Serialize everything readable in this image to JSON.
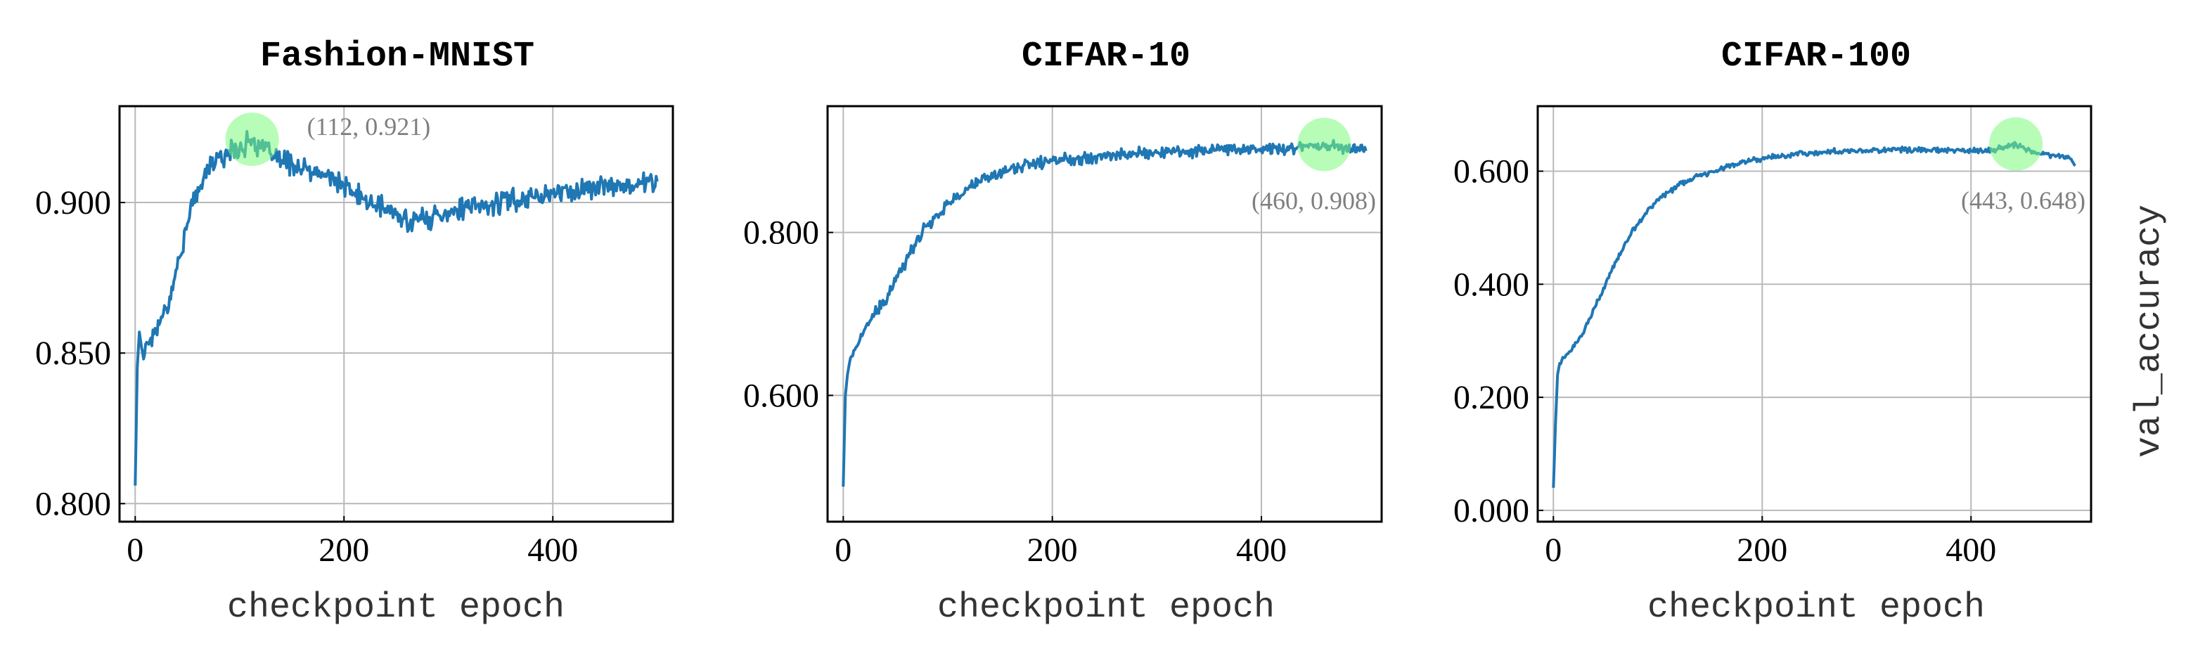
{
  "ylabel": "val_accuracy",
  "colors": {
    "line": "#1f77b4",
    "highlight": "#7CFC7C",
    "annotation": "#7f7f7f"
  },
  "chart_data": [
    {
      "type": "line",
      "title": "Fashion-MNIST",
      "xlabel": "checkpoint epoch",
      "xlim": [
        -15,
        515
      ],
      "ylim": [
        0.794,
        0.932
      ],
      "xticks": [
        0,
        200,
        400
      ],
      "xtick_labels": [
        "0",
        "200",
        "400"
      ],
      "yticks": [
        0.8,
        0.85,
        0.9
      ],
      "ytick_labels": [
        "0.800",
        "0.850",
        "0.900"
      ],
      "grid": true,
      "series": [
        {
          "x": [
            0,
            2,
            4,
            6,
            8,
            10,
            15,
            20,
            25,
            30,
            35,
            40,
            50,
            60,
            70,
            80,
            90,
            100,
            112,
            120,
            130,
            140,
            150,
            160,
            170,
            180,
            190,
            200,
            210,
            220,
            230,
            240,
            250,
            260,
            270,
            280,
            290,
            300,
            320,
            340,
            360,
            380,
            400,
            420,
            440,
            460,
            480,
            500
          ],
          "y": [
            0.806,
            0.845,
            0.857,
            0.852,
            0.848,
            0.853,
            0.855,
            0.858,
            0.862,
            0.865,
            0.872,
            0.878,
            0.893,
            0.905,
            0.911,
            0.915,
            0.917,
            0.918,
            0.921,
            0.918,
            0.916,
            0.914,
            0.913,
            0.911,
            0.91,
            0.909,
            0.908,
            0.905,
            0.903,
            0.901,
            0.899,
            0.898,
            0.896,
            0.894,
            0.895,
            0.894,
            0.896,
            0.897,
            0.898,
            0.899,
            0.901,
            0.902,
            0.903,
            0.904,
            0.905,
            0.906,
            0.906,
            0.907
          ],
          "noise": 0.0045
        }
      ],
      "annotation": {
        "x": 112,
        "y": 0.921,
        "label": "(112, 0.921)",
        "placement": "upper-right"
      }
    },
    {
      "type": "line",
      "title": "CIFAR-10",
      "xlabel": "checkpoint epoch",
      "xlim": [
        -15,
        515
      ],
      "ylim": [
        0.445,
        0.955
      ],
      "xticks": [
        0,
        200,
        400
      ],
      "xtick_labels": [
        "0",
        "200",
        "400"
      ],
      "yticks": [
        0.6,
        0.8
      ],
      "ytick_labels": [
        "0.600",
        "0.800"
      ],
      "grid": true,
      "series": [
        {
          "x": [
            0,
            2,
            4,
            6,
            8,
            10,
            15,
            20,
            30,
            40,
            50,
            60,
            70,
            80,
            90,
            100,
            110,
            120,
            140,
            160,
            180,
            200,
            220,
            240,
            260,
            280,
            300,
            330,
            360,
            400,
            430,
            460,
            480,
            500
          ],
          "y": [
            0.488,
            0.6,
            0.625,
            0.64,
            0.648,
            0.655,
            0.665,
            0.68,
            0.7,
            0.715,
            0.74,
            0.765,
            0.79,
            0.808,
            0.822,
            0.835,
            0.845,
            0.855,
            0.868,
            0.878,
            0.884,
            0.888,
            0.891,
            0.893,
            0.895,
            0.897,
            0.898,
            0.9,
            0.901,
            0.903,
            0.904,
            0.908,
            0.905,
            0.9
          ],
          "noise": 0.009
        }
      ],
      "annotation": {
        "x": 460,
        "y": 0.908,
        "label": "(460, 0.908)",
        "placement": "lower-left"
      }
    },
    {
      "type": "line",
      "title": "CIFAR-100",
      "xlabel": "checkpoint epoch",
      "xlim": [
        -15,
        515
      ],
      "ylim": [
        -0.02,
        0.715
      ],
      "xticks": [
        0,
        200,
        400
      ],
      "xtick_labels": [
        "0",
        "200",
        "400"
      ],
      "yticks": [
        0.0,
        0.2,
        0.4,
        0.6
      ],
      "ytick_labels": [
        "0.000",
        "0.200",
        "0.400",
        "0.600"
      ],
      "grid": true,
      "series": [
        {
          "x": [
            0,
            2,
            4,
            6,
            8,
            10,
            15,
            20,
            30,
            40,
            50,
            60,
            70,
            80,
            90,
            100,
            120,
            140,
            160,
            180,
            200,
            220,
            240,
            260,
            280,
            300,
            320,
            340,
            360,
            380,
            400,
            420,
            443,
            460,
            480,
            495,
            500
          ],
          "y": [
            0.04,
            0.15,
            0.24,
            0.26,
            0.265,
            0.27,
            0.28,
            0.29,
            0.32,
            0.36,
            0.4,
            0.44,
            0.475,
            0.505,
            0.53,
            0.55,
            0.575,
            0.592,
            0.605,
            0.615,
            0.622,
            0.628,
            0.632,
            0.634,
            0.636,
            0.637,
            0.638,
            0.638,
            0.637,
            0.637,
            0.636,
            0.636,
            0.648,
            0.632,
            0.628,
            0.622,
            0.61
          ],
          "noise": 0.006
        }
      ],
      "annotation": {
        "x": 443,
        "y": 0.648,
        "label": "(443, 0.648)",
        "placement": "lower-left"
      }
    }
  ]
}
